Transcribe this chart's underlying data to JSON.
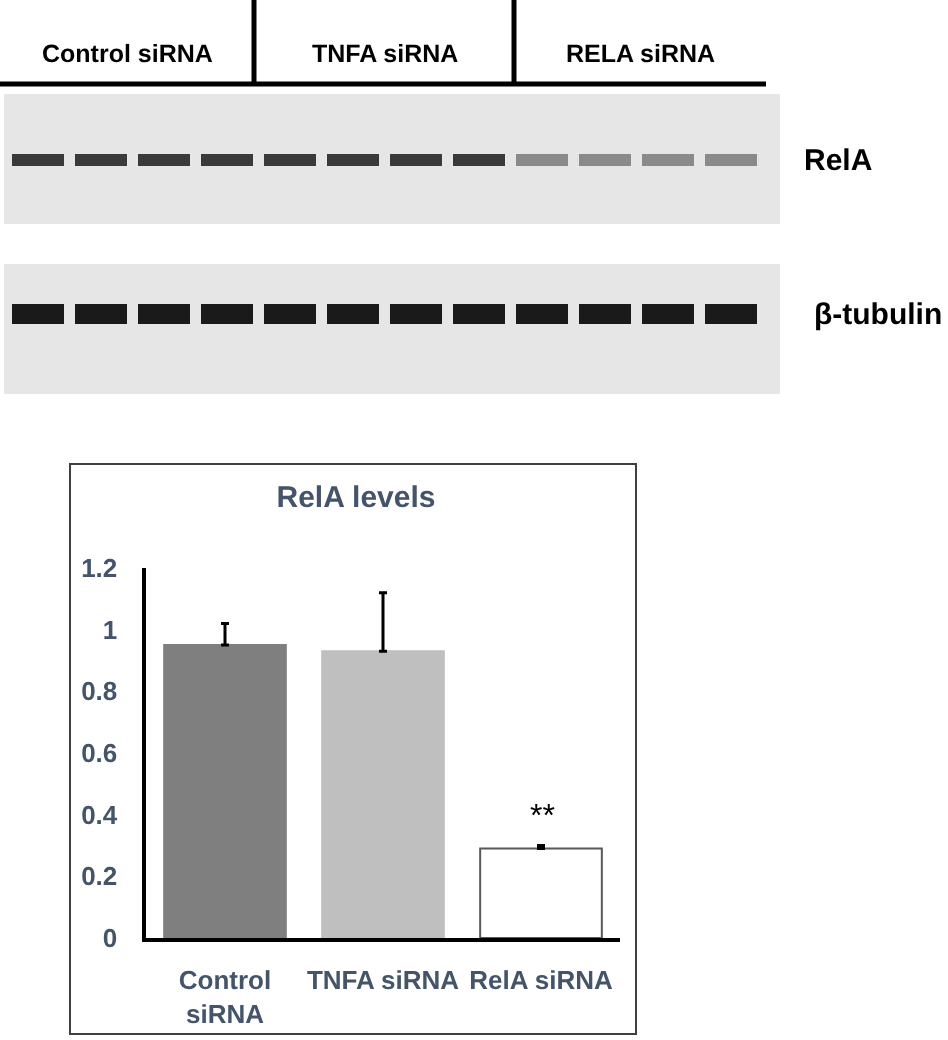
{
  "chart_data": {
    "type": "bar",
    "title": "RelA levels",
    "categories": [
      "Control siRNA",
      "TNFA siRNA",
      "RelA siRNA"
    ],
    "values": [
      0.95,
      0.93,
      0.29
    ],
    "colors": [
      "#7f7f7f",
      "#bfbfbf",
      "#ffffff"
    ],
    "errors": [
      [
        0.95,
        1.02
      ],
      [
        0.93,
        1.12
      ],
      [
        0.29,
        0.3
      ]
    ],
    "ylim": [
      0,
      1.2
    ],
    "yticks": [
      0,
      0.2,
      0.4,
      0.6,
      0.8,
      1,
      1.2
    ],
    "annotations": [
      "Control siRNA",
      "TNFA siRNA",
      "RELA siRNA",
      "RelA",
      "β-tubulin",
      {
        "text": "**",
        "x": "RelA siRNA",
        "y": 0.3
      }
    ]
  }
}
